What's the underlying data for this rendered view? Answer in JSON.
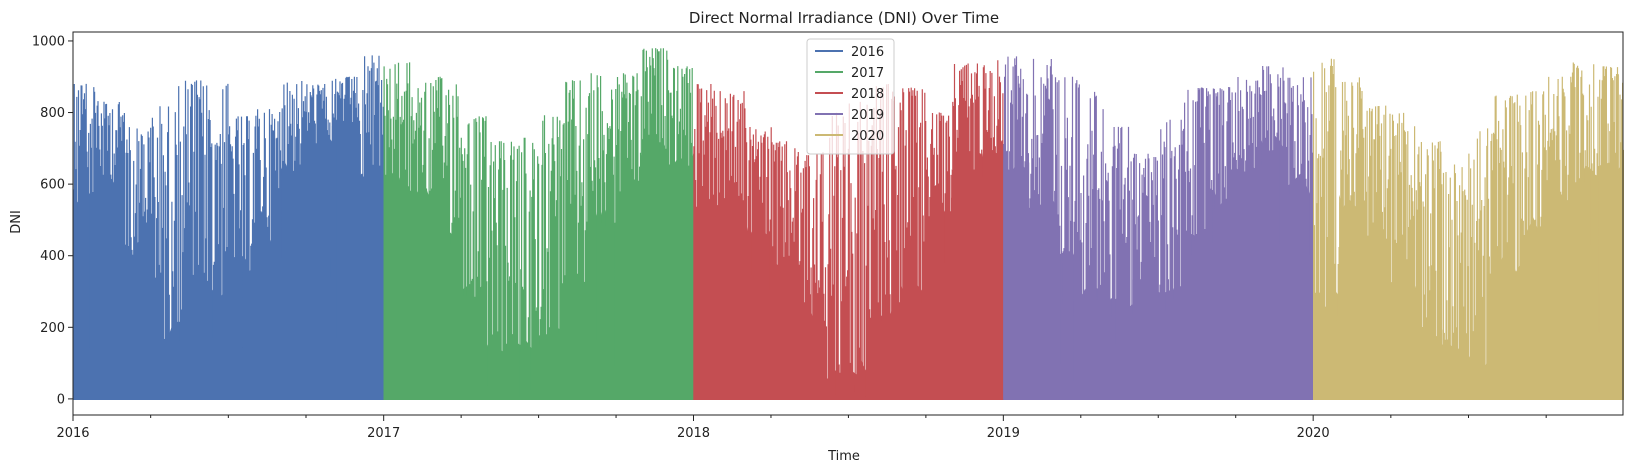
{
  "chart_data": {
    "type": "area",
    "title": "Direct Normal Irradiance (DNI) Over Time",
    "xlabel": "Time",
    "ylabel": "DNI",
    "xlim": [
      "2016-01-01",
      "2020-12-31"
    ],
    "ylim": [
      -45,
      1025
    ],
    "x_ticks": [
      "2016",
      "2017",
      "2018",
      "2019",
      "2020"
    ],
    "y_ticks": [
      0,
      200,
      400,
      600,
      800,
      1000
    ],
    "grid": false,
    "legend_position": "top-center",
    "series": [
      {
        "name": "2016",
        "color": "#4c72b0",
        "start": "2016-01-01",
        "end": "2016-12-31",
        "monthly_peak": [
          880,
          830,
          760,
          820,
          890,
          880,
          790,
          810,
          890,
          880,
          900,
          960
        ],
        "monthly_low": [
          560,
          600,
          420,
          180,
          220,
          300,
          380,
          450,
          640,
          720,
          760,
          620
        ]
      },
      {
        "name": "2017",
        "color": "#55a868",
        "start": "2017-01-01",
        "end": "2017-12-31",
        "monthly_peak": [
          940,
          890,
          900,
          790,
          720,
          730,
          800,
          890,
          910,
          910,
          980,
          930
        ],
        "monthly_low": [
          620,
          560,
          450,
          300,
          150,
          140,
          200,
          280,
          520,
          560,
          700,
          660
        ]
      },
      {
        "name": "2018",
        "color": "#c44e52",
        "start": "2018-01-01",
        "end": "2018-12-31",
        "monthly_peak": [
          880,
          860,
          760,
          720,
          690,
          800,
          830,
          880,
          870,
          800,
          940,
          950
        ],
        "monthly_low": [
          560,
          540,
          480,
          360,
          230,
          80,
          90,
          220,
          300,
          520,
          620,
          700
        ]
      },
      {
        "name": "2019",
        "color": "#8172b2",
        "start": "2019-01-01",
        "end": "2019-12-31",
        "monthly_peak": [
          960,
          950,
          900,
          860,
          760,
          690,
          780,
          870,
          880,
          900,
          930,
          900
        ],
        "monthly_low": [
          640,
          560,
          420,
          300,
          260,
          330,
          300,
          440,
          560,
          640,
          700,
          600
        ]
      },
      {
        "name": "2020",
        "color": "#ccb974",
        "start": "2020-01-01",
        "end": "2020-12-31",
        "monthly_peak": [
          950,
          900,
          820,
          800,
          720,
          660,
          760,
          850,
          860,
          900,
          940,
          930
        ],
        "monthly_low": [
          280,
          560,
          440,
          320,
          180,
          160,
          120,
          380,
          480,
          560,
          620,
          640
        ]
      }
    ]
  }
}
